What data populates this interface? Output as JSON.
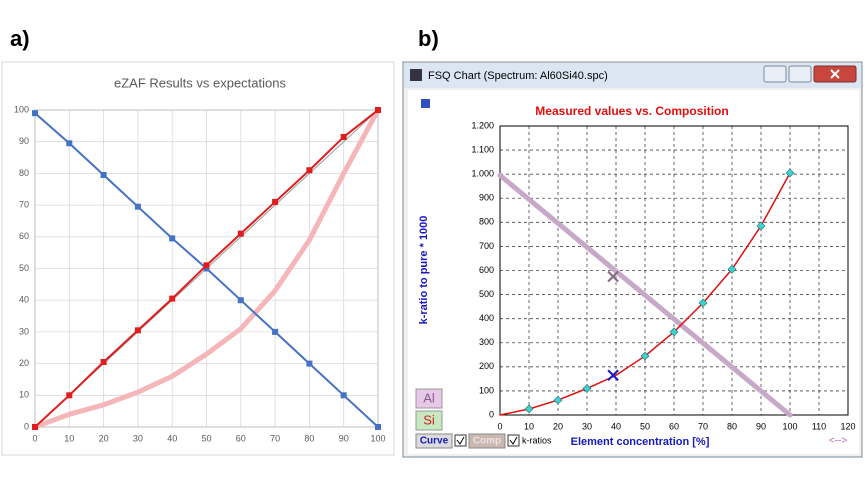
{
  "chart_data": [
    {
      "type": "line",
      "label": "a)",
      "title": "eZAF Results vs expectations",
      "x": [
        0,
        10,
        20,
        30,
        40,
        50,
        60,
        70,
        80,
        90,
        100
      ],
      "xlim": [
        0,
        100
      ],
      "xticks": [
        0,
        10,
        20,
        30,
        40,
        50,
        60,
        70,
        80,
        90,
        100
      ],
      "ylim": [
        0,
        100
      ],
      "yticks": [
        0,
        10,
        20,
        30,
        40,
        50,
        60,
        70,
        80,
        90,
        100
      ],
      "grid": true,
      "grid_style": "solid",
      "series": [
        {
          "color": "#f4b6b8",
          "width": 5,
          "marker": null,
          "values": [
            0,
            4,
            7,
            11,
            16,
            23,
            31,
            43,
            59,
            80,
            100
          ]
        },
        {
          "color": "#9a9a9a",
          "width": 1,
          "marker": null,
          "values": [
            0,
            10,
            20,
            30,
            40,
            50,
            60,
            70,
            80,
            90,
            100
          ]
        },
        {
          "color": "#4472c4",
          "width": 2,
          "marker": "square",
          "values": [
            99,
            89.5,
            79.5,
            69.5,
            59.5,
            50,
            40,
            30,
            20,
            10,
            0
          ]
        },
        {
          "color": "#e01c1c",
          "width": 2,
          "marker": "square",
          "values": [
            0,
            10,
            20.5,
            30.5,
            40.5,
            51,
            61,
            71,
            81,
            91.5,
            100
          ]
        }
      ]
    },
    {
      "type": "line",
      "label": "b)",
      "window_title": "FSQ Chart (Spectrum: Al60Si40.spc)",
      "title": "Measured values vs. Composition",
      "ylabel": "k-ratio to pure * 1000",
      "xlabel": "Element concentration [%]",
      "xlim": [
        0,
        120
      ],
      "xticks": [
        0,
        10,
        20,
        30,
        40,
        50,
        60,
        70,
        80,
        90,
        100,
        110,
        120
      ],
      "ylim": [
        0,
        1200
      ],
      "yticks": [
        0,
        100,
        200,
        300,
        400,
        500,
        600,
        700,
        800,
        900,
        {
          "value": 1000,
          "label": "1.000"
        },
        {
          "value": 1100,
          "label": "1.100"
        },
        {
          "value": 1200,
          "label": "1.200"
        }
      ],
      "grid": true,
      "grid_style": "dashed",
      "buttons": [
        "Al",
        "Si"
      ],
      "controls": [
        "Curve",
        "Comp",
        "k-ratios"
      ],
      "scroll": "<-->",
      "series": [
        {
          "color": "#c8a8c8",
          "width": 5,
          "marker": null,
          "x": [
            0,
            100
          ],
          "values": [
            995,
            0
          ]
        },
        {
          "color": "#8a6a8a",
          "width": 2,
          "marker": "x",
          "x": [
            39
          ],
          "values": [
            575
          ],
          "nomark_line": true
        },
        {
          "color": "#e01010",
          "width": 1.5,
          "marker": null,
          "x": [
            0,
            10,
            20,
            30,
            40,
            50,
            60,
            70,
            80,
            90,
            100
          ],
          "values": [
            0,
            25,
            62,
            110,
            165,
            245,
            345,
            465,
            605,
            785,
            1005
          ]
        },
        {
          "color": "#40d0d0",
          "width": 0,
          "marker": "diamond",
          "x": [
            10,
            20,
            30,
            50,
            60,
            70,
            80,
            90,
            100
          ],
          "values": [
            25,
            62,
            110,
            245,
            345,
            465,
            605,
            785,
            1005
          ]
        },
        {
          "color": "#2020c0",
          "width": 0,
          "marker": "x",
          "x": [
            39
          ],
          "values": [
            165
          ]
        }
      ]
    }
  ]
}
